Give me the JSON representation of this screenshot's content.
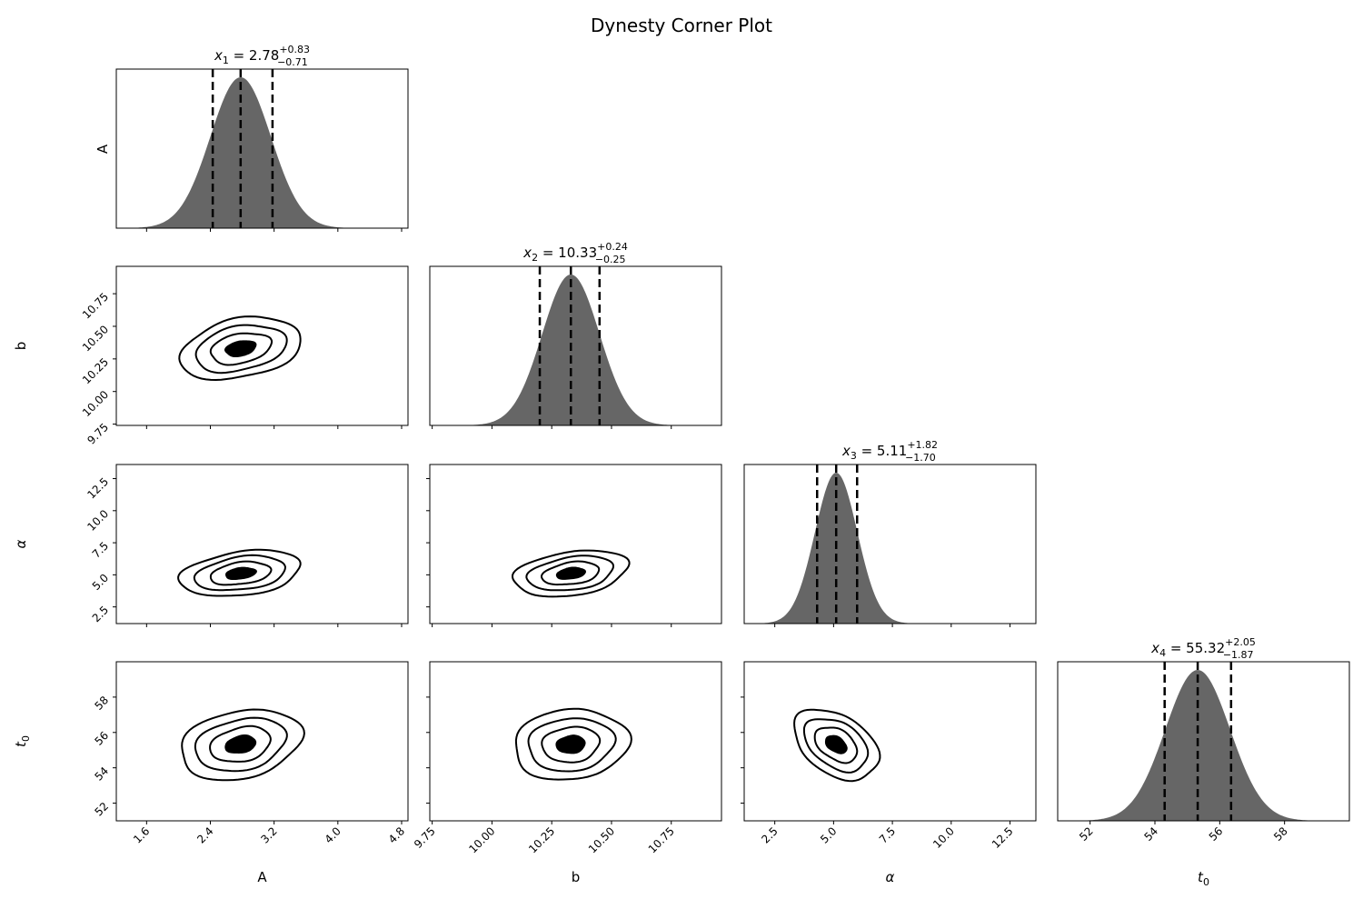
{
  "chart_data": {
    "type": "corner",
    "title": "Dynesty Corner Plot",
    "params": [
      {
        "label": "A",
        "label_tex": "A",
        "median": 2.78,
        "plus": 0.83,
        "minus": 0.71,
        "title_name": "x",
        "title_sub": "1",
        "title_value": "2.78",
        "title_plus": "+0.83",
        "title_minus": "−0.71",
        "range": [
          1.22,
          4.88
        ],
        "ticks": [
          "1.6",
          "2.4",
          "3.2",
          "4.0",
          "4.8"
        ],
        "tick_values": [
          1.6,
          2.4,
          3.2,
          4.0,
          4.8
        ],
        "quantiles": [
          2.43,
          2.78,
          3.18
        ],
        "sigma": 0.38
      },
      {
        "label": "b",
        "label_tex": "b",
        "median": 10.33,
        "plus": 0.24,
        "minus": 0.25,
        "title_name": "x",
        "title_sub": "2",
        "title_value": "10.33",
        "title_plus": "+0.24",
        "title_minus": "−0.25",
        "range": [
          9.74,
          10.96
        ],
        "ticks": [
          "9.75",
          "10.00",
          "10.25",
          "10.50",
          "10.75"
        ],
        "tick_values": [
          9.75,
          10.0,
          10.25,
          10.5,
          10.75
        ],
        "quantiles": [
          10.2,
          10.33,
          10.45
        ],
        "sigma": 0.12
      },
      {
        "label": "α",
        "label_tex": "alpha",
        "median": 5.11,
        "plus": 1.82,
        "minus": 1.7,
        "title_name": "x",
        "title_sub": "3",
        "title_value": "5.11",
        "title_plus": "+1.82",
        "title_minus": "−1.70",
        "range": [
          1.2,
          13.6
        ],
        "ticks": [
          "2.5",
          "5.0",
          "7.5",
          "10.0",
          "12.5"
        ],
        "tick_values": [
          2.5,
          5.0,
          7.5,
          10.0,
          12.5
        ],
        "quantiles": [
          4.3,
          5.11,
          6.0
        ],
        "sigma": 0.9
      },
      {
        "label": "t0",
        "label_tex": "t_0",
        "median": 55.32,
        "plus": 2.05,
        "minus": 1.87,
        "title_name": "x",
        "title_sub": "4",
        "title_value": "55.32",
        "title_plus": "+2.05",
        "title_minus": "−1.87",
        "range": [
          51.0,
          60.0
        ],
        "ticks": [
          "52",
          "54",
          "56",
          "58"
        ],
        "tick_values": [
          52,
          54,
          56,
          58
        ],
        "quantiles": [
          54.3,
          55.32,
          56.35
        ],
        "sigma": 1.0
      }
    ],
    "contours": [
      {
        "row": 1,
        "col": 0,
        "center": [
          2.78,
          10.33
        ],
        "rho": -0.3
      },
      {
        "row": 2,
        "col": 0,
        "center": [
          2.78,
          5.11
        ],
        "rho": -0.3
      },
      {
        "row": 2,
        "col": 1,
        "center": [
          10.33,
          5.11
        ],
        "rho": -0.3
      },
      {
        "row": 3,
        "col": 0,
        "center": [
          2.78,
          55.32
        ],
        "rho": -0.25
      },
      {
        "row": 3,
        "col": 1,
        "center": [
          10.33,
          55.32
        ],
        "rho": -0.1
      },
      {
        "row": 3,
        "col": 2,
        "center": [
          5.11,
          55.32
        ],
        "rho": 0.4
      }
    ],
    "contour_levels_sigma": [
      0.5,
      1.0,
      1.5,
      2.0
    ],
    "hist_color": "#666666",
    "line_color": "#000000"
  }
}
